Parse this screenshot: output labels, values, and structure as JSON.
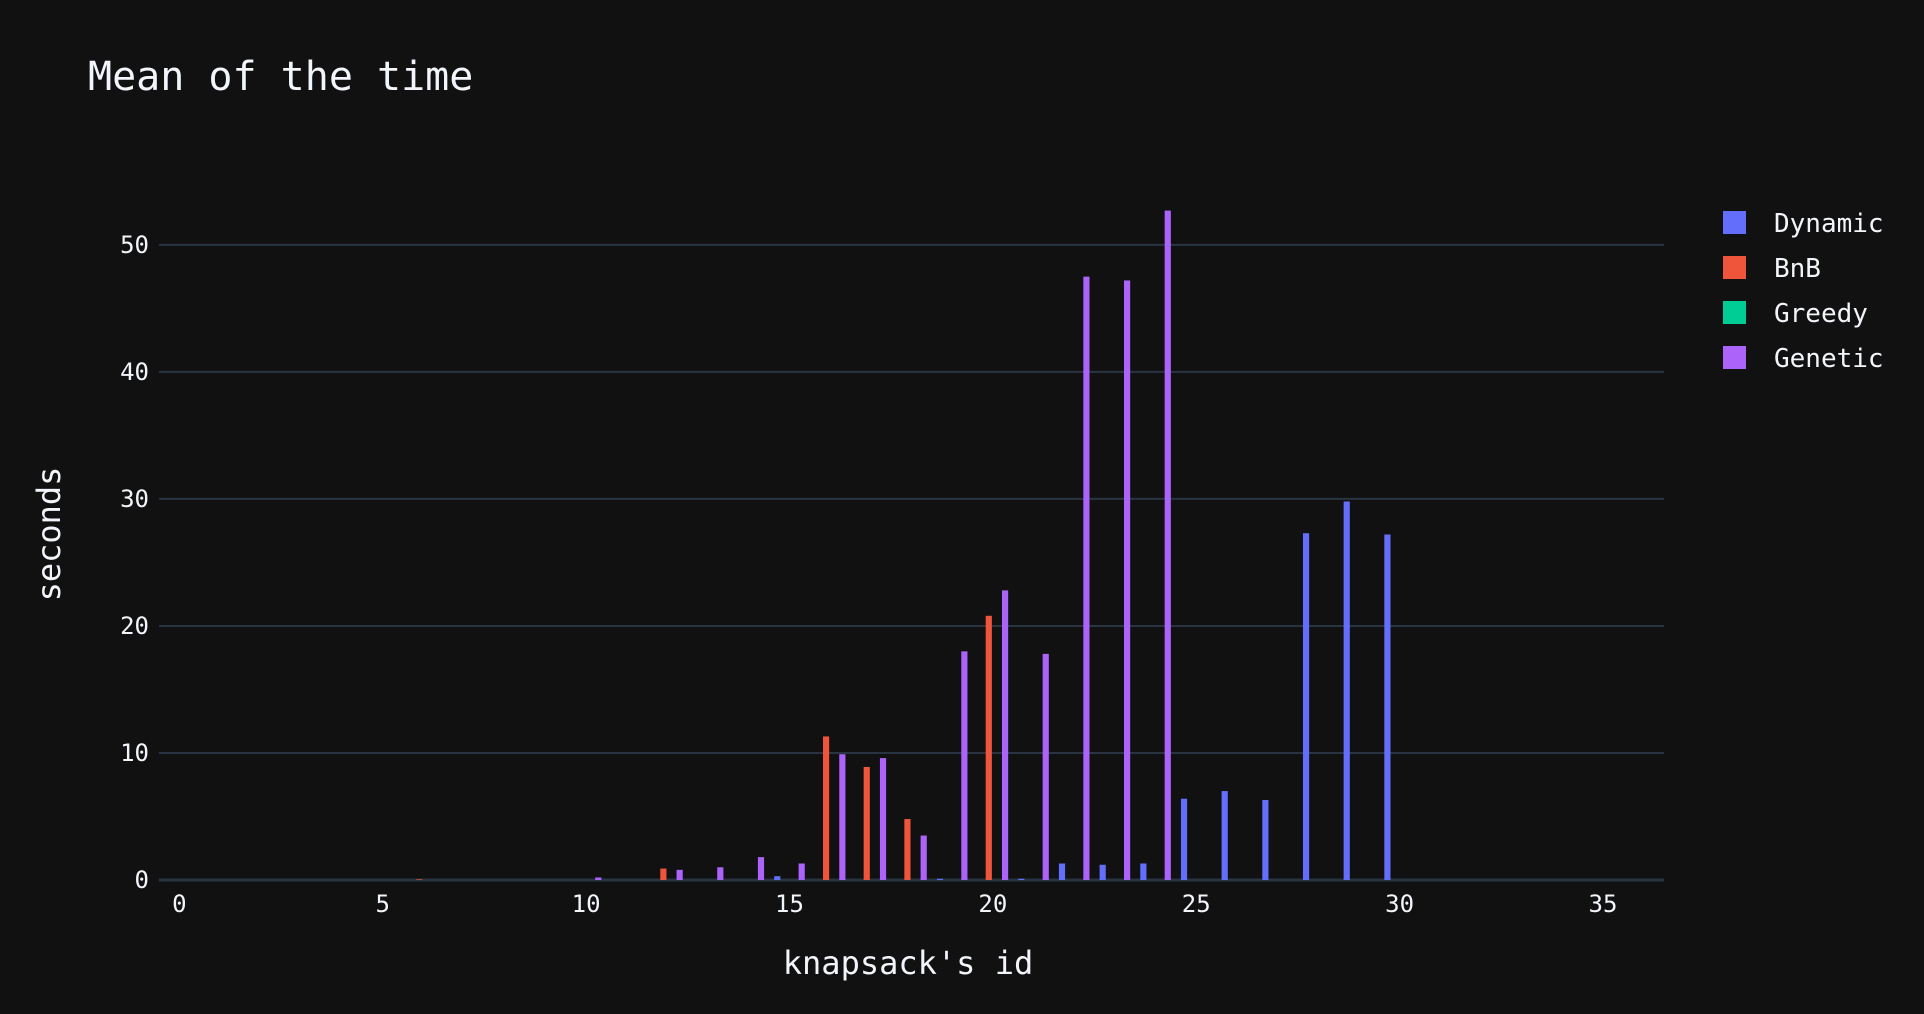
{
  "chart_data": {
    "type": "bar",
    "title": "Mean of the time",
    "xlabel": "knapsack's id",
    "ylabel": "seconds",
    "xlim": [
      -0.5,
      36.5
    ],
    "ylim": [
      0,
      55.5
    ],
    "xticks": [
      0,
      5,
      10,
      15,
      20,
      25,
      30,
      35
    ],
    "yticks": [
      0,
      10,
      20,
      30,
      40,
      50
    ],
    "grid": true,
    "legend_position": "top-right",
    "x": [
      0,
      1,
      2,
      3,
      4,
      5,
      6,
      7,
      8,
      9,
      10,
      11,
      12,
      13,
      14,
      15,
      16,
      17,
      18,
      19,
      20,
      21,
      22,
      23,
      24,
      25,
      26,
      27,
      28,
      29,
      30,
      31,
      32,
      33,
      34,
      35,
      36
    ],
    "series": [
      {
        "name": "Dynamic",
        "color": "#636efa",
        "values": [
          0,
          0,
          0,
          0,
          0,
          0,
          0,
          0,
          0,
          0,
          0,
          0,
          0,
          0,
          0,
          0.3,
          0,
          0,
          0,
          0.1,
          0,
          0.1,
          1.3,
          1.2,
          1.3,
          6.4,
          7.0,
          6.3,
          27.3,
          29.8,
          27.2,
          0,
          0,
          0,
          0,
          0,
          0
        ]
      },
      {
        "name": "BnB",
        "color": "#ef553b",
        "values": [
          0,
          0,
          0,
          0,
          0,
          0,
          0.05,
          0,
          0,
          0,
          0,
          0,
          0.9,
          0,
          0,
          0,
          11.3,
          8.9,
          4.8,
          0,
          20.8,
          0,
          0,
          0,
          0,
          0,
          0,
          0,
          0,
          0,
          0,
          0,
          0,
          0,
          0,
          0,
          0
        ]
      },
      {
        "name": "Greedy",
        "color": "#00cc96",
        "values": [
          0,
          0,
          0,
          0,
          0,
          0,
          0,
          0,
          0,
          0,
          0,
          0,
          0,
          0,
          0,
          0,
          0,
          0,
          0,
          0,
          0,
          0,
          0,
          0,
          0,
          0,
          0,
          0,
          0,
          0,
          0,
          0,
          0,
          0,
          0,
          0,
          0
        ]
      },
      {
        "name": "Genetic",
        "color": "#ab63fa",
        "values": [
          0,
          0,
          0,
          0,
          0,
          0,
          0,
          0,
          0,
          0,
          0.2,
          0,
          0.8,
          1.0,
          1.8,
          1.3,
          9.9,
          9.6,
          3.5,
          18.0,
          22.8,
          17.8,
          47.5,
          47.2,
          52.7,
          0,
          0,
          0,
          0,
          0,
          0,
          0,
          0,
          0,
          0,
          0,
          0
        ]
      }
    ]
  }
}
